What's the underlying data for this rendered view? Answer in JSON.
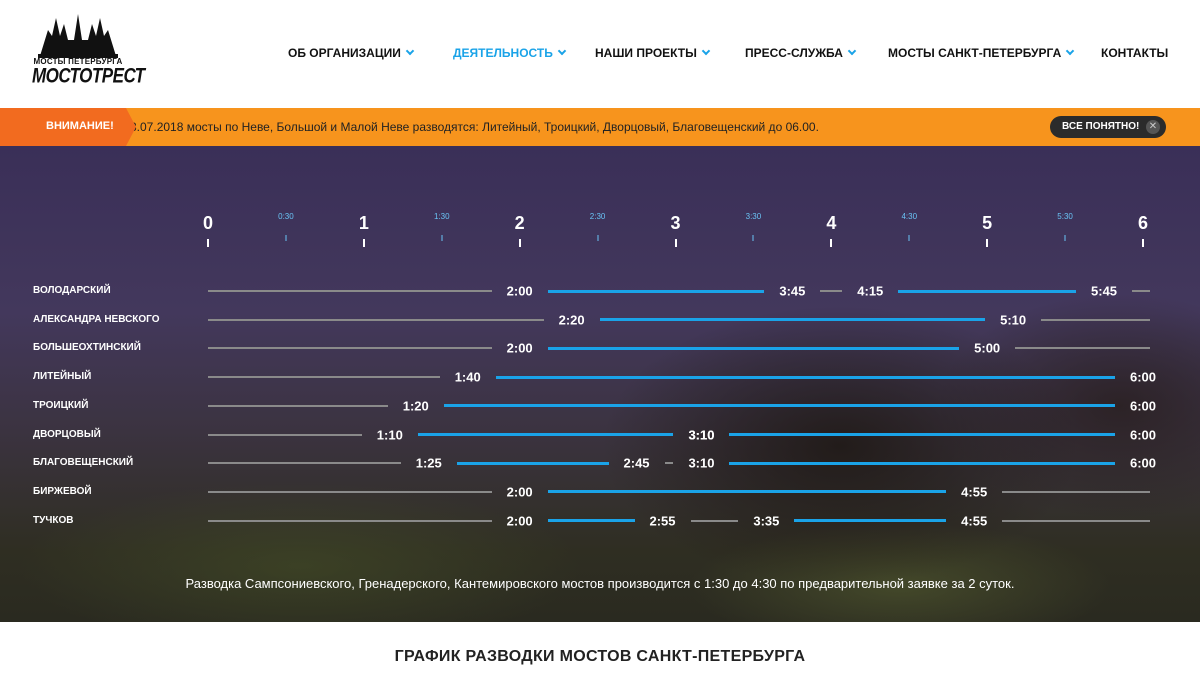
{
  "logo": {
    "subtitle": "МОСТЫ ПЕТЕРБУРГА",
    "name": "МОСТОТРЕСТ"
  },
  "nav": [
    {
      "label": "ОБ ОРГАНИЗАЦИИ",
      "dropdown": true,
      "active": false
    },
    {
      "label": "ДЕЯТЕЛЬНОСТЬ",
      "dropdown": true,
      "active": true
    },
    {
      "label": "НАШИ ПРОЕКТЫ",
      "dropdown": true,
      "active": false
    },
    {
      "label": "ПРЕСС-СЛУЖБА",
      "dropdown": true,
      "active": false
    },
    {
      "label": "МОСТЫ САНКТ-ПЕТЕРБУРГА",
      "dropdown": true,
      "active": false
    },
    {
      "label": "КОНТАКТЫ",
      "dropdown": false,
      "active": false
    }
  ],
  "alert": {
    "badge": "ВНИМАНИЕ!",
    "text": "3.07.2018 мосты по Неве, Большой и Малой Неве разводятся: Литейный, Троицкий, Дворцовый, Благовещенский до 06.00.",
    "button": "ВСЕ ПОНЯТНО!",
    "close_icon": "close-icon"
  },
  "colors": {
    "accent": "#1aa3e8",
    "alert": "#f7941d",
    "alert_badge": "#f26b1f"
  },
  "schedule": {
    "hours": [
      "0",
      "1",
      "2",
      "3",
      "4",
      "5",
      "6"
    ],
    "half_hours": [
      "0:30",
      "1:30",
      "2:30",
      "3:30",
      "4:30",
      "5:30"
    ],
    "bridges": [
      {
        "name": "Володарский",
        "intervals": [
          [
            "2:00",
            "3:45"
          ],
          [
            "4:15",
            "5:45"
          ]
        ]
      },
      {
        "name": "Александра Невского",
        "intervals": [
          [
            "2:20",
            "5:10"
          ]
        ]
      },
      {
        "name": "Большеохтинский",
        "intervals": [
          [
            "2:00",
            "5:00"
          ]
        ]
      },
      {
        "name": "Литейный",
        "intervals": [
          [
            "1:40",
            "6:00"
          ]
        ]
      },
      {
        "name": "Троицкий",
        "intervals": [
          [
            "1:20",
            "6:00"
          ]
        ]
      },
      {
        "name": "Дворцовый",
        "intervals": [
          [
            "1:10",
            "3:10"
          ],
          [
            "3:10",
            "6:00"
          ]
        ]
      },
      {
        "name": "Благовещенский",
        "intervals": [
          [
            "1:25",
            "2:45"
          ],
          [
            "3:10",
            "6:00"
          ]
        ]
      },
      {
        "name": "Биржевой",
        "intervals": [
          [
            "2:00",
            "4:55"
          ]
        ]
      },
      {
        "name": "Тучков",
        "intervals": [
          [
            "2:00",
            "2:55"
          ],
          [
            "3:35",
            "4:55"
          ]
        ]
      }
    ]
  },
  "note": "Разводка Сампсониевского, Гренадерского, Кантемировского мостов производится с 1:30 до 4:30 по предварительной заявке за 2 суток.",
  "section_title": "ГРАФИК РАЗВОДКИ МОСТОВ САНКТ-ПЕТЕРБУРГА"
}
